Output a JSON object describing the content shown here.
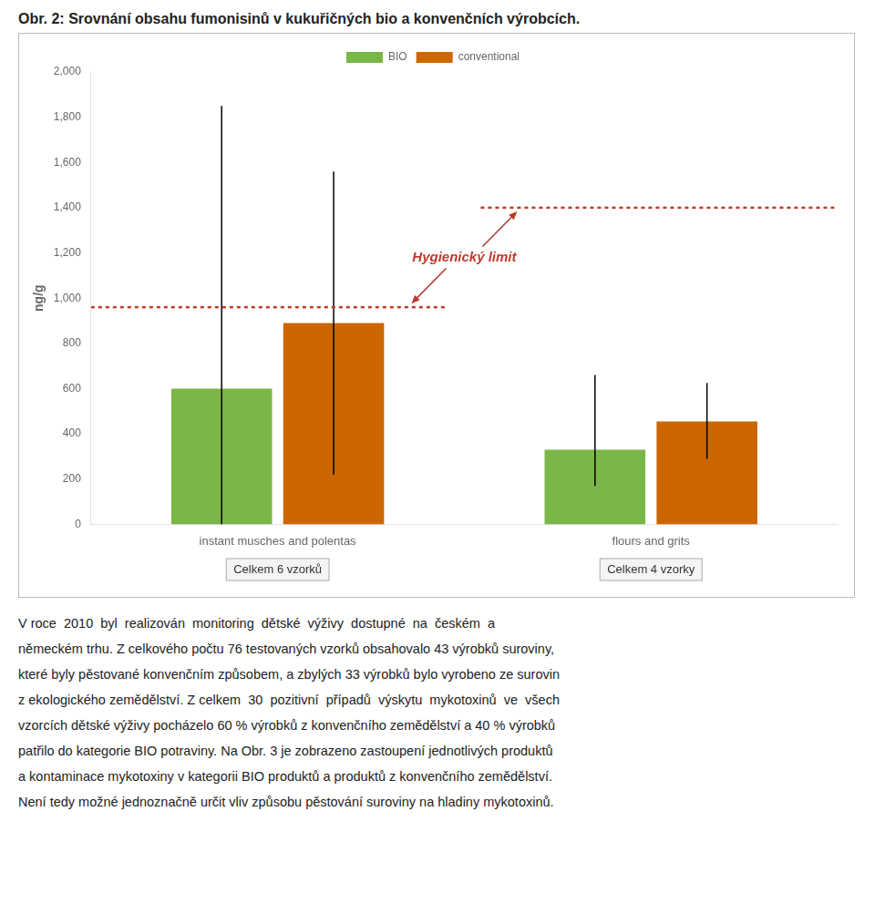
{
  "chart_data": {
    "type": "bar",
    "title": "Obr. 2: Srovnání obsahu fumonisinů v kukuřičných bio a konvenčních výrobcích.",
    "ylabel": "ng/g",
    "categories": [
      "instant musches and polentas",
      "flours and grits"
    ],
    "series": [
      {
        "name": "BIO",
        "color": "#7ab648",
        "values": [
          600,
          330
        ],
        "error_bottom": [
          0,
          170
        ],
        "error_top": [
          1850,
          660
        ]
      },
      {
        "name": "conventional",
        "color": "#cc6600",
        "values": [
          890,
          455
        ],
        "error_bottom": [
          220,
          290
        ],
        "error_top": [
          1560,
          625
        ]
      }
    ],
    "ylim": [
      0,
      2000
    ],
    "yticks": [
      0,
      200,
      400,
      600,
      800,
      1000,
      1200,
      1400,
      1600,
      1800,
      2000
    ],
    "grid": false,
    "legend": "top",
    "hygienic_limit": {
      "label": "Hygienický limit",
      "color": "#c0392b",
      "values": [
        960,
        1400
      ]
    },
    "category_notes": [
      "Celkem 6 vzorků",
      "Celkem 4 vzorky"
    ],
    "text_lines": [
      "V roce  2010  byl  realizován  monitoring  dětské  výživy  dostupné  na  českém  a",
      "německém trhu. Z celkového počtu 76 testovaných vzorků obsahovalo 43 výrobků suroviny,",
      "které byly pěstované konvenčním způsobem, a zbylých 33 výrobků bylo vyrobeno ze surovin",
      "z ekologického zemědělství. Z celkem  30  pozitivní  případů  výskytu  mykotoxinů  ve  všech",
      "vzorcích dětské výživy pocházelo 60 % výrobků z konvenčního zemědělství a 40 % výrobků",
      "patřilo do kategorie BIO potraviny. Na Obr. 3 je zobrazeno zastoupení jednotlivých produktů",
      "a kontaminace mykotoxiny v kategorii BIO produktů a produktů z konvenčního zemědělství.",
      "Není tedy možné jednoznačně určit vliv způsobu pěstování suroviny na hladiny mykotoxinů."
    ]
  }
}
